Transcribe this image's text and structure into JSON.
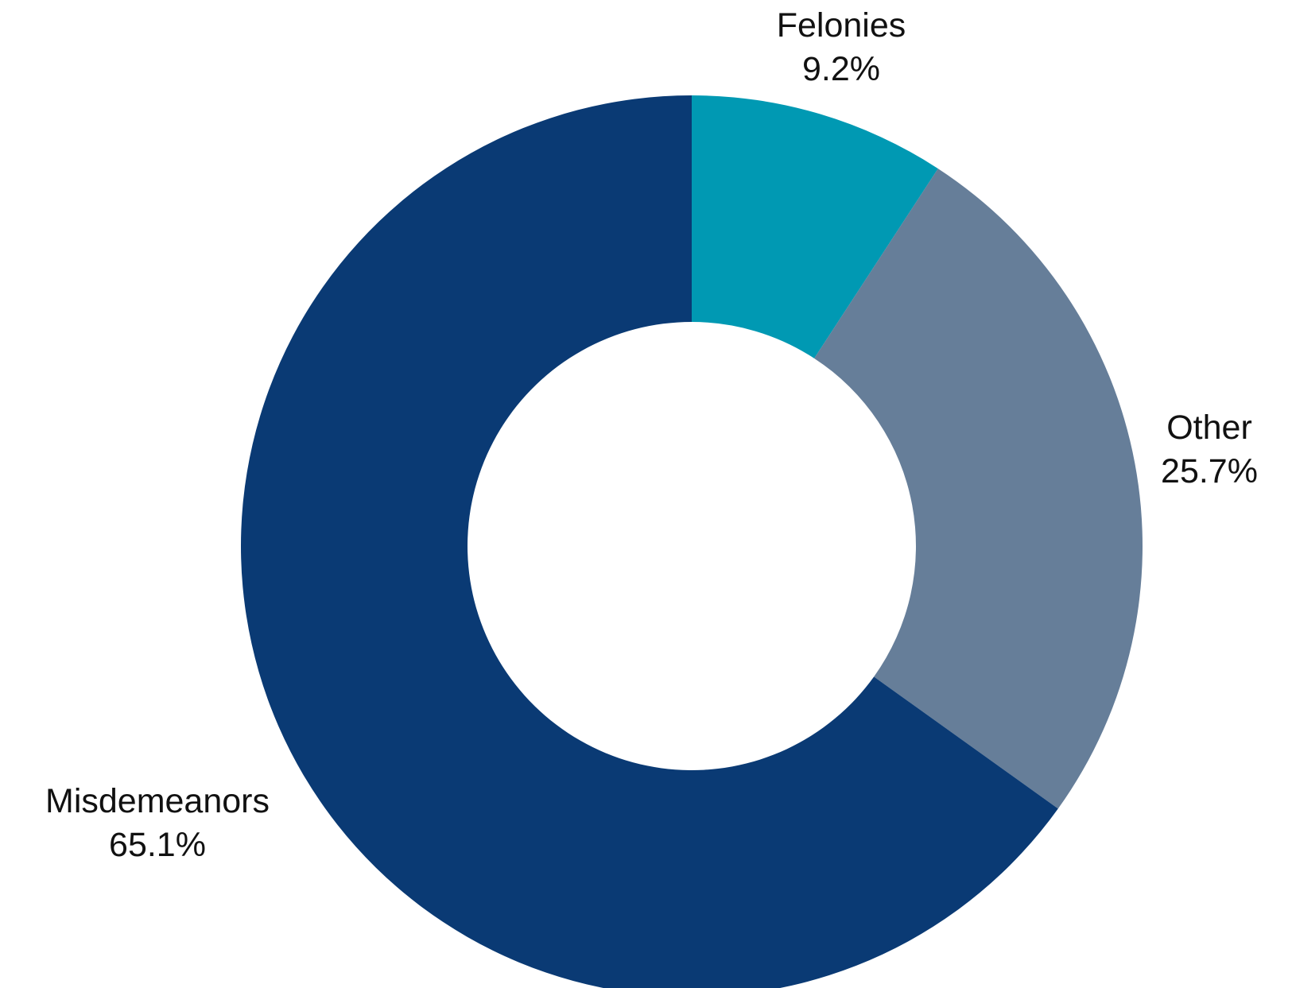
{
  "chart_data": {
    "type": "pie",
    "variant": "donut",
    "title": "",
    "start_angle": "12 o'clock",
    "direction": "clockwise",
    "slices": [
      {
        "label": "Felonies",
        "value": 9.2,
        "value_label": "9.2%",
        "color": "#0099b3"
      },
      {
        "label": "Other",
        "value": 25.7,
        "value_label": "25.7%",
        "color": "#667e99"
      },
      {
        "label": "Misdemeanors",
        "value": 65.1,
        "value_label": "65.1%",
        "color": "#0a3a74"
      }
    ]
  }
}
